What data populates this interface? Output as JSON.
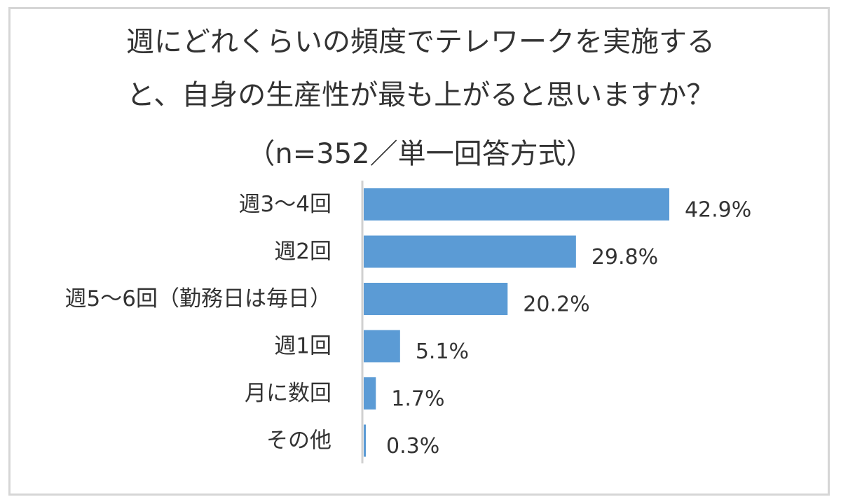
{
  "chart_data": {
    "type": "bar",
    "orientation": "horizontal",
    "title": [
      "週にどれくらいの頻度でテレワークを実施する",
      "と、自身の生産性が最も上がると思いますか？",
      "（n=352／単一回答方式）"
    ],
    "categories": [
      "週3〜4回",
      "週2回",
      "週5〜6回（勤務日は毎日）",
      "週1回",
      "月に数回",
      "その他"
    ],
    "values": [
      42.9,
      29.8,
      20.2,
      5.1,
      1.7,
      0.3
    ],
    "value_labels": [
      "42.9%",
      "29.8%",
      "20.2%",
      "5.1%",
      "1.7%",
      "0.3%"
    ],
    "unit": "%",
    "xlim": [
      0,
      43
    ],
    "bar_color": "#5b9bd5",
    "axis_color": "#d0d0d0",
    "grid": false,
    "legend": "none"
  }
}
